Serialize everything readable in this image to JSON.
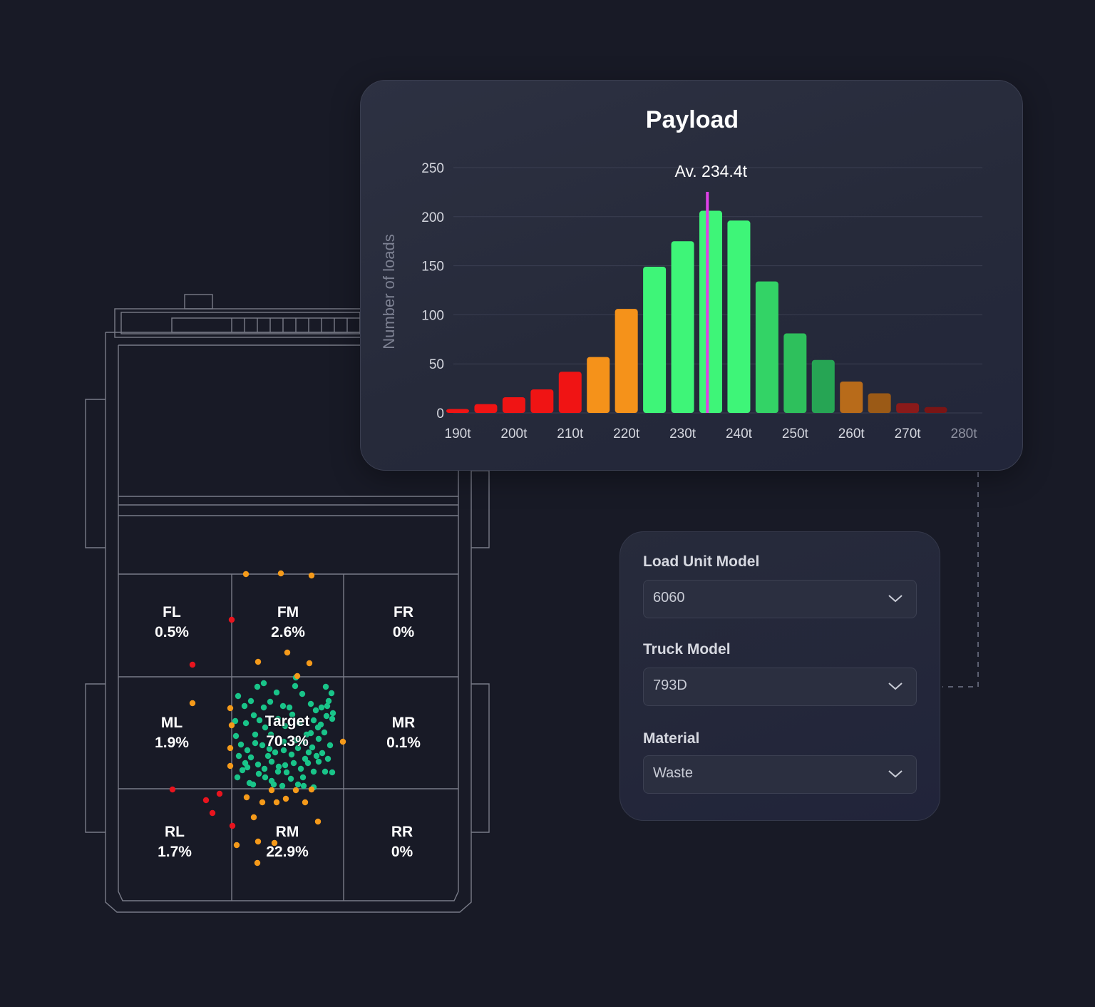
{
  "payload_chart": {
    "title": "Payload",
    "average_label": "Av. 234.4t",
    "average_value": 234.4,
    "ylabel": "Number of loads",
    "chart_data": {
      "type": "bar",
      "title": "Payload",
      "xlabel": "",
      "ylabel": "Number of loads",
      "ylim": [
        0,
        250
      ],
      "xlim": [
        190,
        280
      ],
      "yticks": [
        0,
        50,
        100,
        150,
        200,
        250
      ],
      "xticks": [
        190,
        200,
        210,
        220,
        230,
        240,
        250,
        260,
        270,
        280
      ],
      "xtick_labels": [
        "190t",
        "200t",
        "210t",
        "220t",
        "230t",
        "240t",
        "250t",
        "260t",
        "270t",
        "280t"
      ],
      "grid": true,
      "bin_centers": [
        190,
        195,
        200,
        205,
        210,
        215,
        220,
        225,
        230,
        235,
        240,
        245,
        250,
        255,
        260,
        265,
        270,
        275
      ],
      "values": [
        4,
        9,
        16,
        24,
        42,
        57,
        106,
        149,
        175,
        206,
        196,
        134,
        81,
        54,
        32,
        20,
        10,
        6
      ],
      "colors": [
        "#f01414",
        "#f01414",
        "#f01414",
        "#f01414",
        "#f01414",
        "#f5921a",
        "#f5921a",
        "#3ef578",
        "#3ef578",
        "#3ef578",
        "#3ef578",
        "#33d366",
        "#2ec05c",
        "#26a554",
        "#b86b1a",
        "#9b5a16",
        "#8a1a1a",
        "#7a1515"
      ]
    }
  },
  "settings": {
    "fields": [
      {
        "label": "Load Unit Model",
        "value": "6060"
      },
      {
        "label": "Truck Model",
        "value": "793D"
      },
      {
        "label": "Material",
        "value": "Waste"
      }
    ]
  },
  "truck_zones": {
    "fl": {
      "name": "FL",
      "pct": "0.5%"
    },
    "fm": {
      "name": "FM",
      "pct": "2.6%"
    },
    "fr": {
      "name": "FR",
      "pct": "0%"
    },
    "ml": {
      "name": "ML",
      "pct": "1.9%"
    },
    "target": {
      "name": "Target",
      "pct": "70.3%"
    },
    "mr": {
      "name": "MR",
      "pct": "0.1%"
    },
    "rl": {
      "name": "RL",
      "pct": "1.7%"
    },
    "rm": {
      "name": "RM",
      "pct": "22.9%"
    },
    "rr": {
      "name": "RR",
      "pct": "0%"
    }
  },
  "colors": {
    "background": "#181a26",
    "average_line": "#e040e8",
    "dot_green": "#19c489",
    "dot_orange": "#f59a1a",
    "dot_red": "#e8141e"
  }
}
